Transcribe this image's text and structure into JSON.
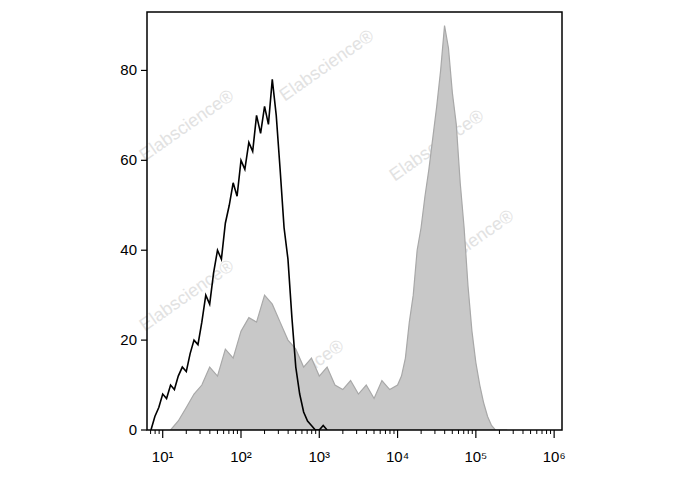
{
  "chart_data": {
    "type": "histogram_overlay",
    "log": "x",
    "grid": false,
    "xlim": [
      6.3,
      1260000
    ],
    "ylim": [
      0,
      93
    ],
    "xticks": [
      {
        "value": 10,
        "label": "10¹"
      },
      {
        "value": 100,
        "label": "10²"
      },
      {
        "value": 1000,
        "label": "10³"
      },
      {
        "value": 10000,
        "label": "10⁴"
      },
      {
        "value": 100000,
        "label": "10⁵"
      },
      {
        "value": 1000000,
        "label": "10⁶"
      }
    ],
    "yticks": [
      0,
      20,
      40,
      60,
      80
    ],
    "annotations": [
      "Elabscience®"
    ],
    "series": [
      {
        "type": "area",
        "color": "#c8c8c8",
        "x": [
          12.6,
          15.8,
          20,
          25.1,
          31.6,
          39.8,
          50.1,
          63.1,
          79.4,
          100,
          126,
          158,
          200,
          251,
          316,
          398,
          501,
          631,
          794,
          1000,
          1259,
          1585,
          1995,
          2512,
          3162,
          3981,
          5012,
          6310,
          7943,
          10000,
          11220,
          12589,
          14125,
          15849,
          17783,
          19953,
          22387,
          25119,
          28184,
          31623,
          35481,
          39811,
          44668,
          50119,
          56234,
          63096,
          70795,
          79433,
          89125,
          100000,
          112202,
          125893,
          141254,
          158489,
          177828,
          199526,
          223872,
          251189
        ],
        "values": [
          0,
          2,
          5,
          8,
          10,
          14,
          12,
          18,
          16,
          22,
          25,
          24,
          30,
          28,
          24,
          20,
          18,
          14,
          16,
          12,
          14,
          10,
          9,
          11,
          8,
          10,
          7,
          11,
          9,
          10,
          12,
          16,
          24,
          30,
          40,
          45,
          52,
          58,
          65,
          72,
          80,
          90,
          85,
          75,
          68,
          55,
          45,
          32,
          22,
          15,
          10,
          6,
          3,
          1,
          0,
          0,
          0,
          0
        ]
      },
      {
        "type": "line",
        "color": "#000000",
        "x": [
          7.08,
          7.94,
          8.91,
          10,
          11.2,
          12.6,
          14.1,
          15.8,
          17.8,
          20,
          22.4,
          25.1,
          28.2,
          31.6,
          35.5,
          39.8,
          44.7,
          50.1,
          56.2,
          63.1,
          70.8,
          79.4,
          89.1,
          100,
          112,
          126,
          141,
          158,
          178,
          200,
          224,
          251,
          282,
          316,
          355,
          398,
          447,
          501,
          562,
          631,
          708,
          794,
          891,
          1000,
          1122,
          1259
        ],
        "values": [
          0,
          3,
          5,
          8,
          7,
          10,
          9,
          12,
          14,
          13,
          17,
          20,
          19,
          24,
          30,
          28,
          35,
          40,
          38,
          46,
          50,
          55,
          52,
          60,
          58,
          64,
          62,
          70,
          66,
          72,
          68,
          78,
          70,
          58,
          45,
          38,
          25,
          14,
          8,
          4,
          2,
          1,
          0,
          0,
          1,
          0
        ]
      }
    ]
  }
}
